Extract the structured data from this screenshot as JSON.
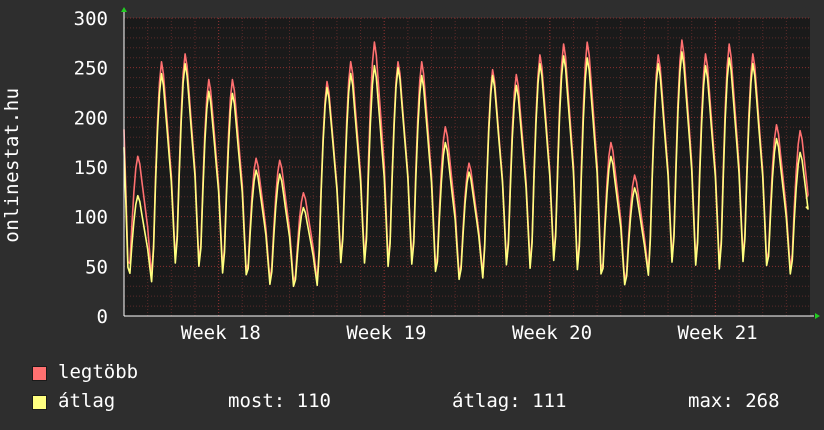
{
  "chart_data": {
    "type": "line",
    "ylabel": "onlinestat.hu",
    "ylim": [
      0,
      300
    ],
    "yticks": [
      0,
      50,
      100,
      150,
      200,
      250,
      300
    ],
    "x_week_labels": [
      "Week 18",
      "Week 19",
      "Week 20",
      "Week 21"
    ],
    "x_days": 29,
    "grid": true,
    "series": [
      {
        "name": "legtöbb",
        "color": "#ff7070",
        "daily_peaks": [
          162,
          258,
          266,
          240,
          240,
          160,
          158,
          125,
          238,
          258,
          278,
          258,
          258,
          192,
          155,
          250,
          245,
          265,
          276,
          278,
          176,
          143,
          265,
          280,
          266,
          276,
          266,
          194,
          188
        ],
        "daily_troughs": [
          28,
          30,
          40,
          35,
          30,
          28,
          25,
          22,
          28,
          42,
          40,
          35,
          38,
          30,
          28,
          33,
          38,
          35,
          42,
          30,
          25,
          22,
          38,
          40,
          35,
          32,
          40,
          36,
          34
        ]
      },
      {
        "name": "átlag",
        "color": "#ffff80",
        "daily_peaks": [
          122,
          246,
          256,
          228,
          226,
          148,
          144,
          110,
          232,
          246,
          254,
          252,
          244,
          176,
          146,
          244,
          234,
          256,
          264,
          262,
          162,
          130,
          256,
          268,
          254,
          262,
          256,
          180,
          166
        ],
        "daily_troughs": [
          25,
          28,
          37,
          32,
          27,
          25,
          22,
          20,
          25,
          39,
          37,
          32,
          35,
          27,
          25,
          30,
          35,
          32,
          39,
          27,
          22,
          20,
          35,
          37,
          32,
          29,
          37,
          33,
          31
        ]
      }
    ],
    "start_value": {
      "legtöbb": 188,
      "átlag": 170
    },
    "end_value": {
      "legtöbb": 118,
      "átlag": 110
    }
  },
  "legend": {
    "max_label": "legtöbb",
    "avg_label": "átlag",
    "stats": {
      "now": "most: 110",
      "avg": "átlag: 111",
      "max": "max: 268"
    }
  },
  "colors": {
    "background": "#2e2e2e",
    "plot_background": "#1a1a1a",
    "grid_minor": "#5a2a2a",
    "grid_major": "#8a3030",
    "axis": "#ffffff",
    "arrow": "#22cc22"
  }
}
